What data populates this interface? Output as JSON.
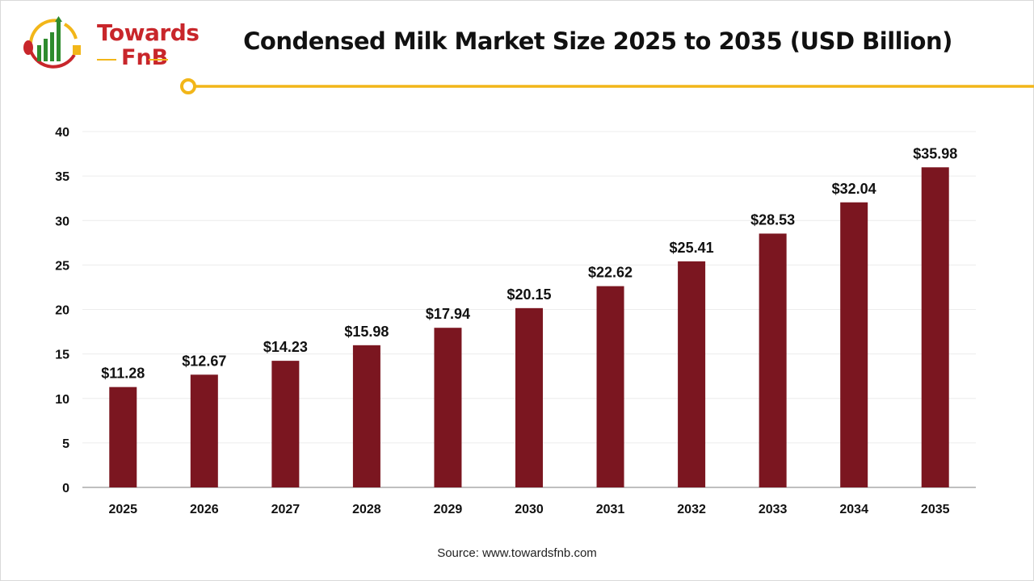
{
  "logo": {
    "line1": "Towards",
    "line2": "FnB"
  },
  "source": "Source: www.towardsfnb.com",
  "colors": {
    "bar": "#7b1620",
    "accent": "#f2b619",
    "logo_red": "#c8262b",
    "logo_green": "#2e8b2e"
  },
  "chart_data": {
    "type": "bar",
    "title": "Condensed Milk Market Size 2025 to 2035 (USD Billion)",
    "categories": [
      "2025",
      "2026",
      "2027",
      "2028",
      "2029",
      "2030",
      "2031",
      "2032",
      "2033",
      "2034",
      "2035"
    ],
    "values": [
      11.28,
      12.67,
      14.23,
      15.98,
      17.94,
      20.15,
      22.62,
      25.41,
      28.53,
      32.04,
      35.98
    ],
    "data_labels": [
      "$11.28",
      "$12.67",
      "$14.23",
      "$15.98",
      "$17.94",
      "$20.15",
      "$22.62",
      "$25.41",
      "$28.53",
      "$32.04",
      "$35.98"
    ],
    "yticks": [
      "0",
      "5",
      "10",
      "15",
      "20",
      "25",
      "30",
      "35",
      "40"
    ],
    "ylim": [
      0,
      40
    ],
    "xlabel": "",
    "ylabel": "",
    "grid": true,
    "legend": "none"
  }
}
